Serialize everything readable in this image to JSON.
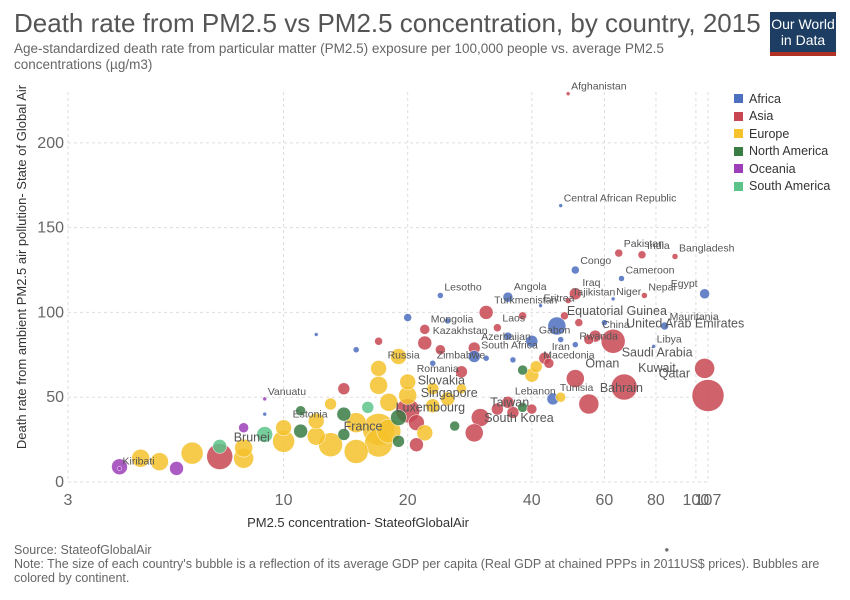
{
  "header": {
    "title": "Death rate from PM2.5 vs PM2.5 concentration, by country, 2015",
    "subtitle": "Age-standardized death rate from particular matter (PM2.5) exposure per 100,000 people vs. average PM2.5 concentrations (µg/m3)",
    "logo_line1": "Our World",
    "logo_line2": "in Data"
  },
  "legend": {
    "items": [
      {
        "label": "Africa",
        "color": "#4c6fbf"
      },
      {
        "label": "Asia",
        "color": "#c84652"
      },
      {
        "label": "Europe",
        "color": "#f5c22b"
      },
      {
        "label": "North America",
        "color": "#3a7d44"
      },
      {
        "label": "Oceania",
        "color": "#9c3fb8"
      },
      {
        "label": "South America",
        "color": "#5cc48a"
      }
    ]
  },
  "footer": {
    "source": "Source: StateofGlobalAir",
    "note": "Note: The size of each country's bubble is a reflection of its average GDP per capita (Real GDP at chained PPPs in 2011US$ prices). Bubbles are colored by continent."
  },
  "chart_data": {
    "type": "scatter",
    "title": "Death rate from PM2.5 vs PM2.5 concentration, by country, 2015",
    "xlabel": "PM2.5 concentration- StateofGlobalAir",
    "ylabel": "Death rate from ambient PM2.5 air pollution- State of Global Air",
    "x_scale": "log",
    "xlim": [
      3,
      107
    ],
    "ylim": [
      0,
      230
    ],
    "x_ticks": [
      3,
      10,
      20,
      40,
      60,
      80,
      100,
      107
    ],
    "x_tick_labels": [
      "3",
      "10",
      "20",
      "40",
      "60",
      "80",
      "100",
      "107"
    ],
    "y_ticks": [
      0,
      50,
      100,
      150,
      200
    ],
    "grid": true,
    "legend_position": "right",
    "points": [
      {
        "label": "Afghanistan",
        "x": 49,
        "y": 229,
        "continent": "Asia",
        "size": 2
      },
      {
        "label": "Central African Republic",
        "x": 47,
        "y": 163,
        "continent": "Africa",
        "size": 2
      },
      {
        "label": "Pakistan",
        "x": 65,
        "y": 135,
        "continent": "Asia",
        "size": 4
      },
      {
        "label": "India",
        "x": 74,
        "y": 134,
        "continent": "Asia",
        "size": 4
      },
      {
        "label": "Bangladesh",
        "x": 89,
        "y": 133,
        "continent": "Asia",
        "size": 3
      },
      {
        "label": "Congo",
        "x": 51,
        "y": 125,
        "continent": "Africa",
        "size": 4
      },
      {
        "label": "Cameroon",
        "x": 66,
        "y": 120,
        "continent": "Africa",
        "size": 3
      },
      {
        "label": "Egypt",
        "x": 105,
        "y": 111,
        "continent": "Africa",
        "size": 5
      },
      {
        "label": "Nepal",
        "x": 75,
        "y": 110,
        "continent": "Asia",
        "size": 3
      },
      {
        "label": "Niger",
        "x": 63,
        "y": 108,
        "continent": "Africa",
        "size": 2
      },
      {
        "label": "Iraq",
        "x": 51,
        "y": 111,
        "continent": "Asia",
        "size": 6
      },
      {
        "label": "Tajikistan",
        "x": 49,
        "y": 107,
        "continent": "Asia",
        "size": 3
      },
      {
        "label": "Lesotho",
        "x": 24,
        "y": 110,
        "continent": "Africa",
        "size": 3
      },
      {
        "label": "Angola",
        "x": 35,
        "y": 109,
        "continent": "Africa",
        "size": 5
      },
      {
        "label": "Turkmenistan",
        "x": 31,
        "y": 100,
        "continent": "Asia",
        "size": 7
      },
      {
        "label": "Eritrea",
        "x": 42,
        "y": 104,
        "continent": "Africa",
        "size": 2
      },
      {
        "label": "Equatorial Guinea",
        "x": 46,
        "y": 92,
        "continent": "Africa",
        "size": 9
      },
      {
        "label": "Mauritania",
        "x": 84,
        "y": 92,
        "continent": "Africa",
        "size": 4
      },
      {
        "label": "United Arab Emirates",
        "x": 63,
        "y": 83,
        "continent": "Asia",
        "size": 12
      },
      {
        "label": "China",
        "x": 57,
        "y": 86,
        "continent": "Asia",
        "size": 6
      },
      {
        "label": "Rwanda",
        "x": 51,
        "y": 81,
        "continent": "Africa",
        "size": 3
      },
      {
        "label": "Laos",
        "x": 33,
        "y": 91,
        "continent": "Asia",
        "size": 4
      },
      {
        "label": "Mongolia",
        "x": 22,
        "y": 90,
        "continent": "Asia",
        "size": 5
      },
      {
        "label": "Gabon",
        "x": 40,
        "y": 83,
        "continent": "Africa",
        "size": 6
      },
      {
        "label": "Libya",
        "x": 79,
        "y": 80,
        "continent": "Africa",
        "size": 2
      },
      {
        "label": "Saudi Arabia",
        "x": 105,
        "y": 67,
        "continent": "Asia",
        "size": 10
      },
      {
        "label": "Qatar",
        "x": 107,
        "y": 51,
        "continent": "Asia",
        "size": 16
      },
      {
        "label": "Kazakhstan",
        "x": 22,
        "y": 82,
        "continent": "Asia",
        "size": 7
      },
      {
        "label": "Azerbaijan",
        "x": 29,
        "y": 79,
        "continent": "Asia",
        "size": 6
      },
      {
        "label": "South Africa",
        "x": 29,
        "y": 74,
        "continent": "Africa",
        "size": 6
      },
      {
        "label": "Iran",
        "x": 43,
        "y": 73,
        "continent": "Asia",
        "size": 6
      },
      {
        "label": "Zimbabwe",
        "x": 23,
        "y": 70,
        "continent": "Africa",
        "size": 3
      },
      {
        "label": "Macedonia",
        "x": 41,
        "y": 68,
        "continent": "Europe",
        "size": 6
      },
      {
        "label": "Oman",
        "x": 51,
        "y": 61,
        "continent": "Asia",
        "size": 9
      },
      {
        "label": "Kuwait",
        "x": 67,
        "y": 56,
        "continent": "Asia",
        "size": 13
      },
      {
        "label": "Russia",
        "x": 17,
        "y": 67,
        "continent": "Europe",
        "size": 8
      },
      {
        "label": "Romania",
        "x": 20,
        "y": 59,
        "continent": "Europe",
        "size": 8
      },
      {
        "label": "Tunisia",
        "x": 45,
        "y": 49,
        "continent": "Africa",
        "size": 6
      },
      {
        "label": "Bahrain",
        "x": 55,
        "y": 46,
        "continent": "Asia",
        "size": 10
      },
      {
        "label": "Slovakia",
        "x": 20,
        "y": 51,
        "continent": "Europe",
        "size": 9
      },
      {
        "label": "Vanuatu",
        "x": 9,
        "y": 49,
        "continent": "Oceania",
        "size": 2
      },
      {
        "label": "Lebanon",
        "x": 35,
        "y": 47,
        "continent": "Asia",
        "size": 6
      },
      {
        "label": "Singapore",
        "x": 20,
        "y": 42,
        "continent": "Asia",
        "size": 12
      },
      {
        "label": "Taiwan",
        "x": 30,
        "y": 38,
        "continent": "Asia",
        "size": 9
      },
      {
        "label": "South Korea",
        "x": 29,
        "y": 29,
        "continent": "Asia",
        "size": 9
      },
      {
        "label": "Estonia",
        "x": 10,
        "y": 32,
        "continent": "Europe",
        "size": 8
      },
      {
        "label": "Luxembourg",
        "x": 17,
        "y": 31,
        "continent": "Europe",
        "size": 16
      },
      {
        "label": "France",
        "x": 13,
        "y": 22,
        "continent": "Europe",
        "size": 12
      },
      {
        "label": "Brunei",
        "x": 7,
        "y": 15,
        "continent": "Asia",
        "size": 13
      },
      {
        "label": "Kiribati",
        "x": 4,
        "y": 8,
        "continent": "Oceania",
        "size": 2
      }
    ],
    "unlabeled_points": [
      {
        "x": 20,
        "y": 97,
        "continent": "Africa",
        "size": 4
      },
      {
        "x": 25,
        "y": 95,
        "continent": "Africa",
        "size": 3
      },
      {
        "x": 38,
        "y": 98,
        "continent": "Asia",
        "size": 4
      },
      {
        "x": 48,
        "y": 98,
        "continent": "Asia",
        "size": 4
      },
      {
        "x": 52,
        "y": 94,
        "continent": "Asia",
        "size": 4
      },
      {
        "x": 60,
        "y": 94,
        "continent": "Africa",
        "size": 3
      },
      {
        "x": 17,
        "y": 83,
        "continent": "Asia",
        "size": 4
      },
      {
        "x": 35,
        "y": 86,
        "continent": "Africa",
        "size": 4
      },
      {
        "x": 47,
        "y": 84,
        "continent": "Africa",
        "size": 3
      },
      {
        "x": 55,
        "y": 84,
        "continent": "Asia",
        "size": 5
      },
      {
        "x": 12,
        "y": 87,
        "continent": "Africa",
        "size": 2
      },
      {
        "x": 15,
        "y": 78,
        "continent": "Africa",
        "size": 3
      },
      {
        "x": 19,
        "y": 74,
        "continent": "Europe",
        "size": 8
      },
      {
        "x": 24,
        "y": 78,
        "continent": "Asia",
        "size": 5
      },
      {
        "x": 27,
        "y": 65,
        "continent": "Asia",
        "size": 6
      },
      {
        "x": 31,
        "y": 73,
        "continent": "Africa",
        "size": 3
      },
      {
        "x": 36,
        "y": 72,
        "continent": "Africa",
        "size": 3
      },
      {
        "x": 38,
        "y": 66,
        "continent": "North America",
        "size": 5
      },
      {
        "x": 40,
        "y": 63,
        "continent": "Europe",
        "size": 7
      },
      {
        "x": 44,
        "y": 70,
        "continent": "Asia",
        "size": 5
      },
      {
        "x": 14,
        "y": 55,
        "continent": "Asia",
        "size": 6
      },
      {
        "x": 17,
        "y": 57,
        "continent": "Europe",
        "size": 9
      },
      {
        "x": 23,
        "y": 55,
        "continent": "Europe",
        "size": 6
      },
      {
        "x": 25,
        "y": 49,
        "continent": "Europe",
        "size": 7
      },
      {
        "x": 27,
        "y": 55,
        "continent": "Europe",
        "size": 5
      },
      {
        "x": 33,
        "y": 43,
        "continent": "Asia",
        "size": 6
      },
      {
        "x": 36,
        "y": 41,
        "continent": "Asia",
        "size": 6
      },
      {
        "x": 38,
        "y": 44,
        "continent": "North America",
        "size": 5
      },
      {
        "x": 40,
        "y": 43,
        "continent": "Asia",
        "size": 5
      },
      {
        "x": 47,
        "y": 50,
        "continent": "Europe",
        "size": 5
      },
      {
        "x": 11,
        "y": 42,
        "continent": "North America",
        "size": 5
      },
      {
        "x": 12,
        "y": 36,
        "continent": "Europe",
        "size": 8
      },
      {
        "x": 13,
        "y": 46,
        "continent": "Europe",
        "size": 6
      },
      {
        "x": 14,
        "y": 40,
        "continent": "North America",
        "size": 7
      },
      {
        "x": 15,
        "y": 35,
        "continent": "Europe",
        "size": 10
      },
      {
        "x": 16,
        "y": 44,
        "continent": "South America",
        "size": 6
      },
      {
        "x": 18,
        "y": 47,
        "continent": "Europe",
        "size": 9
      },
      {
        "x": 19,
        "y": 38,
        "continent": "North America",
        "size": 8
      },
      {
        "x": 21,
        "y": 35,
        "continent": "Asia",
        "size": 8
      },
      {
        "x": 23,
        "y": 45,
        "continent": "Europe",
        "size": 7
      },
      {
        "x": 26,
        "y": 33,
        "continent": "North America",
        "size": 5
      },
      {
        "x": 8,
        "y": 32,
        "continent": "Oceania",
        "size": 5
      },
      {
        "x": 8,
        "y": 20,
        "continent": "Europe",
        "size": 9
      },
      {
        "x": 9,
        "y": 28,
        "continent": "South America",
        "size": 8
      },
      {
        "x": 10,
        "y": 24,
        "continent": "Europe",
        "size": 11
      },
      {
        "x": 11,
        "y": 30,
        "continent": "North America",
        "size": 7
      },
      {
        "x": 12,
        "y": 27,
        "continent": "Europe",
        "size": 9
      },
      {
        "x": 14,
        "y": 28,
        "continent": "North America",
        "size": 6
      },
      {
        "x": 15,
        "y": 18,
        "continent": "Europe",
        "size": 12
      },
      {
        "x": 17,
        "y": 23,
        "continent": "Europe",
        "size": 14
      },
      {
        "x": 18,
        "y": 30,
        "continent": "Europe",
        "size": 12
      },
      {
        "x": 19,
        "y": 24,
        "continent": "North America",
        "size": 6
      },
      {
        "x": 21,
        "y": 22,
        "continent": "Asia",
        "size": 7
      },
      {
        "x": 22,
        "y": 29,
        "continent": "Europe",
        "size": 8
      },
      {
        "x": 5,
        "y": 12,
        "continent": "Europe",
        "size": 9
      },
      {
        "x": 6,
        "y": 17,
        "continent": "Europe",
        "size": 11
      },
      {
        "x": 7,
        "y": 21,
        "continent": "South America",
        "size": 7
      },
      {
        "x": 8,
        "y": 14,
        "continent": "Europe",
        "size": 10
      },
      {
        "x": 4,
        "y": 9,
        "continent": "Oceania",
        "size": 8
      },
      {
        "x": 4.5,
        "y": 14,
        "continent": "Europe",
        "size": 9
      },
      {
        "x": 5.5,
        "y": 8,
        "continent": "Oceania",
        "size": 7
      },
      {
        "x": 9,
        "y": 40,
        "continent": "Africa",
        "size": 2
      },
      {
        "x": 85,
        "y": -40,
        "continent": "Other",
        "size": 2
      }
    ]
  }
}
